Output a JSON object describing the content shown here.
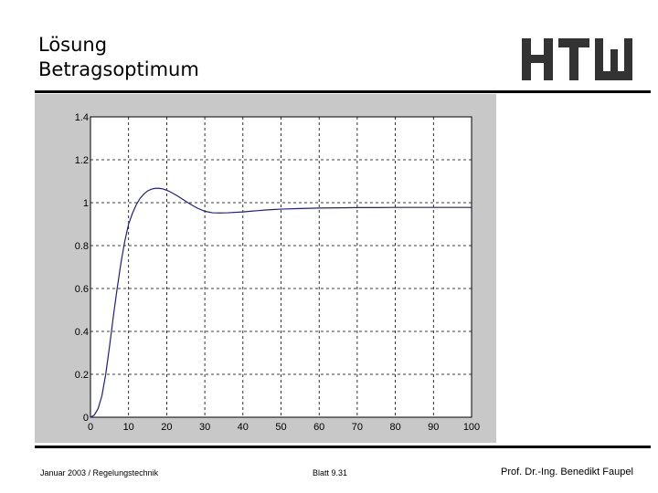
{
  "slide": {
    "title_line1": "Lösung",
    "title_line2": "Betragsoptimum",
    "logo_text": "HTW",
    "footer_left": "Januar 2003 / Regelungstechnik",
    "footer_center": "Blatt 9.31",
    "footer_right": "Prof. Dr.-Ing. Benedikt Faupel"
  },
  "colors": {
    "curve": "#1f1f8a",
    "frame_background": "#c8c8c8",
    "plot_background": "#ffffff",
    "grid": "#000000",
    "logo": "#333333"
  },
  "chart_data": {
    "type": "line",
    "title": "",
    "xlabel": "",
    "ylabel": "",
    "xlim": [
      0,
      100
    ],
    "ylim": [
      0,
      1.4
    ],
    "grid": true,
    "x_ticks": [
      "0",
      "10",
      "20",
      "30",
      "40",
      "50",
      "60",
      "70",
      "80",
      "90",
      "100"
    ],
    "y_ticks": [
      "0",
      "0.2",
      "0.4",
      "0.6",
      "0.8",
      "1",
      "1.2",
      "1.4"
    ],
    "series": [
      {
        "x": [
          0,
          1,
          2,
          3,
          4,
          5,
          6,
          7,
          8,
          9,
          10,
          11,
          12,
          13,
          14,
          15,
          16,
          17,
          18,
          19,
          20,
          21,
          22,
          23,
          24,
          26,
          28,
          30,
          32,
          34,
          36,
          38,
          40,
          42,
          44,
          46,
          48,
          50,
          55,
          60,
          65,
          70,
          75,
          80,
          85,
          90,
          95,
          100
        ],
        "y": [
          0,
          0.01,
          0.04,
          0.1,
          0.2,
          0.33,
          0.47,
          0.6,
          0.72,
          0.82,
          0.9,
          0.95,
          0.99,
          1.02,
          1.04,
          1.055,
          1.063,
          1.067,
          1.067,
          1.064,
          1.058,
          1.05,
          1.04,
          1.03,
          1.018,
          0.995,
          0.975,
          0.96,
          0.953,
          0.952,
          0.953,
          0.955,
          0.957,
          0.96,
          0.963,
          0.966,
          0.968,
          0.97,
          0.973,
          0.975,
          0.976,
          0.977,
          0.977,
          0.978,
          0.978,
          0.978,
          0.978,
          0.978
        ]
      }
    ]
  }
}
